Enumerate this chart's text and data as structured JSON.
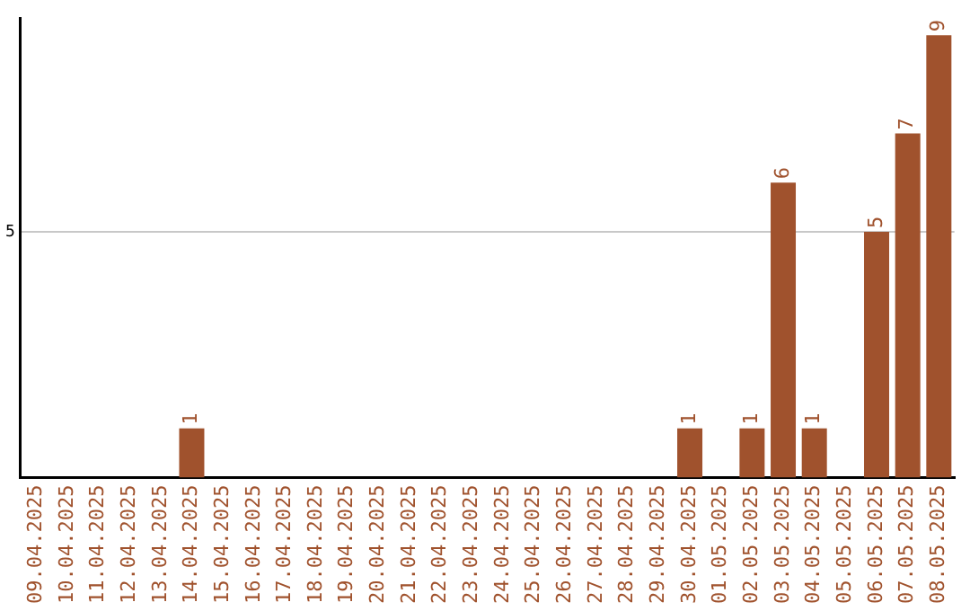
{
  "chart_data": {
    "type": "bar",
    "categories": [
      "09.04.2025",
      "10.04.2025",
      "11.04.2025",
      "12.04.2025",
      "13.04.2025",
      "14.04.2025",
      "15.04.2025",
      "16.04.2025",
      "17.04.2025",
      "18.04.2025",
      "19.04.2025",
      "20.04.2025",
      "21.04.2025",
      "22.04.2025",
      "23.04.2025",
      "24.04.2025",
      "25.04.2025",
      "26.04.2025",
      "27.04.2025",
      "28.04.2025",
      "29.04.2025",
      "30.04.2025",
      "01.05.2025",
      "02.05.2025",
      "03.05.2025",
      "04.05.2025",
      "05.05.2025",
      "06.05.2025",
      "07.05.2025",
      "08.05.2025"
    ],
    "values": [
      0,
      0,
      0,
      0,
      0,
      1,
      0,
      0,
      0,
      0,
      0,
      0,
      0,
      0,
      0,
      0,
      0,
      0,
      0,
      0,
      0,
      1,
      0,
      1,
      6,
      1,
      0,
      5,
      7,
      9
    ],
    "value_labels": [
      null,
      null,
      null,
      null,
      null,
      "1",
      null,
      null,
      null,
      null,
      null,
      null,
      null,
      null,
      null,
      null,
      null,
      null,
      null,
      null,
      null,
      "1",
      null,
      "1",
      "6",
      "1",
      null,
      "5",
      "7",
      "9"
    ],
    "color": "#a0522d",
    "ylim": [
      0,
      9.35
    ],
    "yticks": [
      5
    ],
    "grid": "y"
  }
}
